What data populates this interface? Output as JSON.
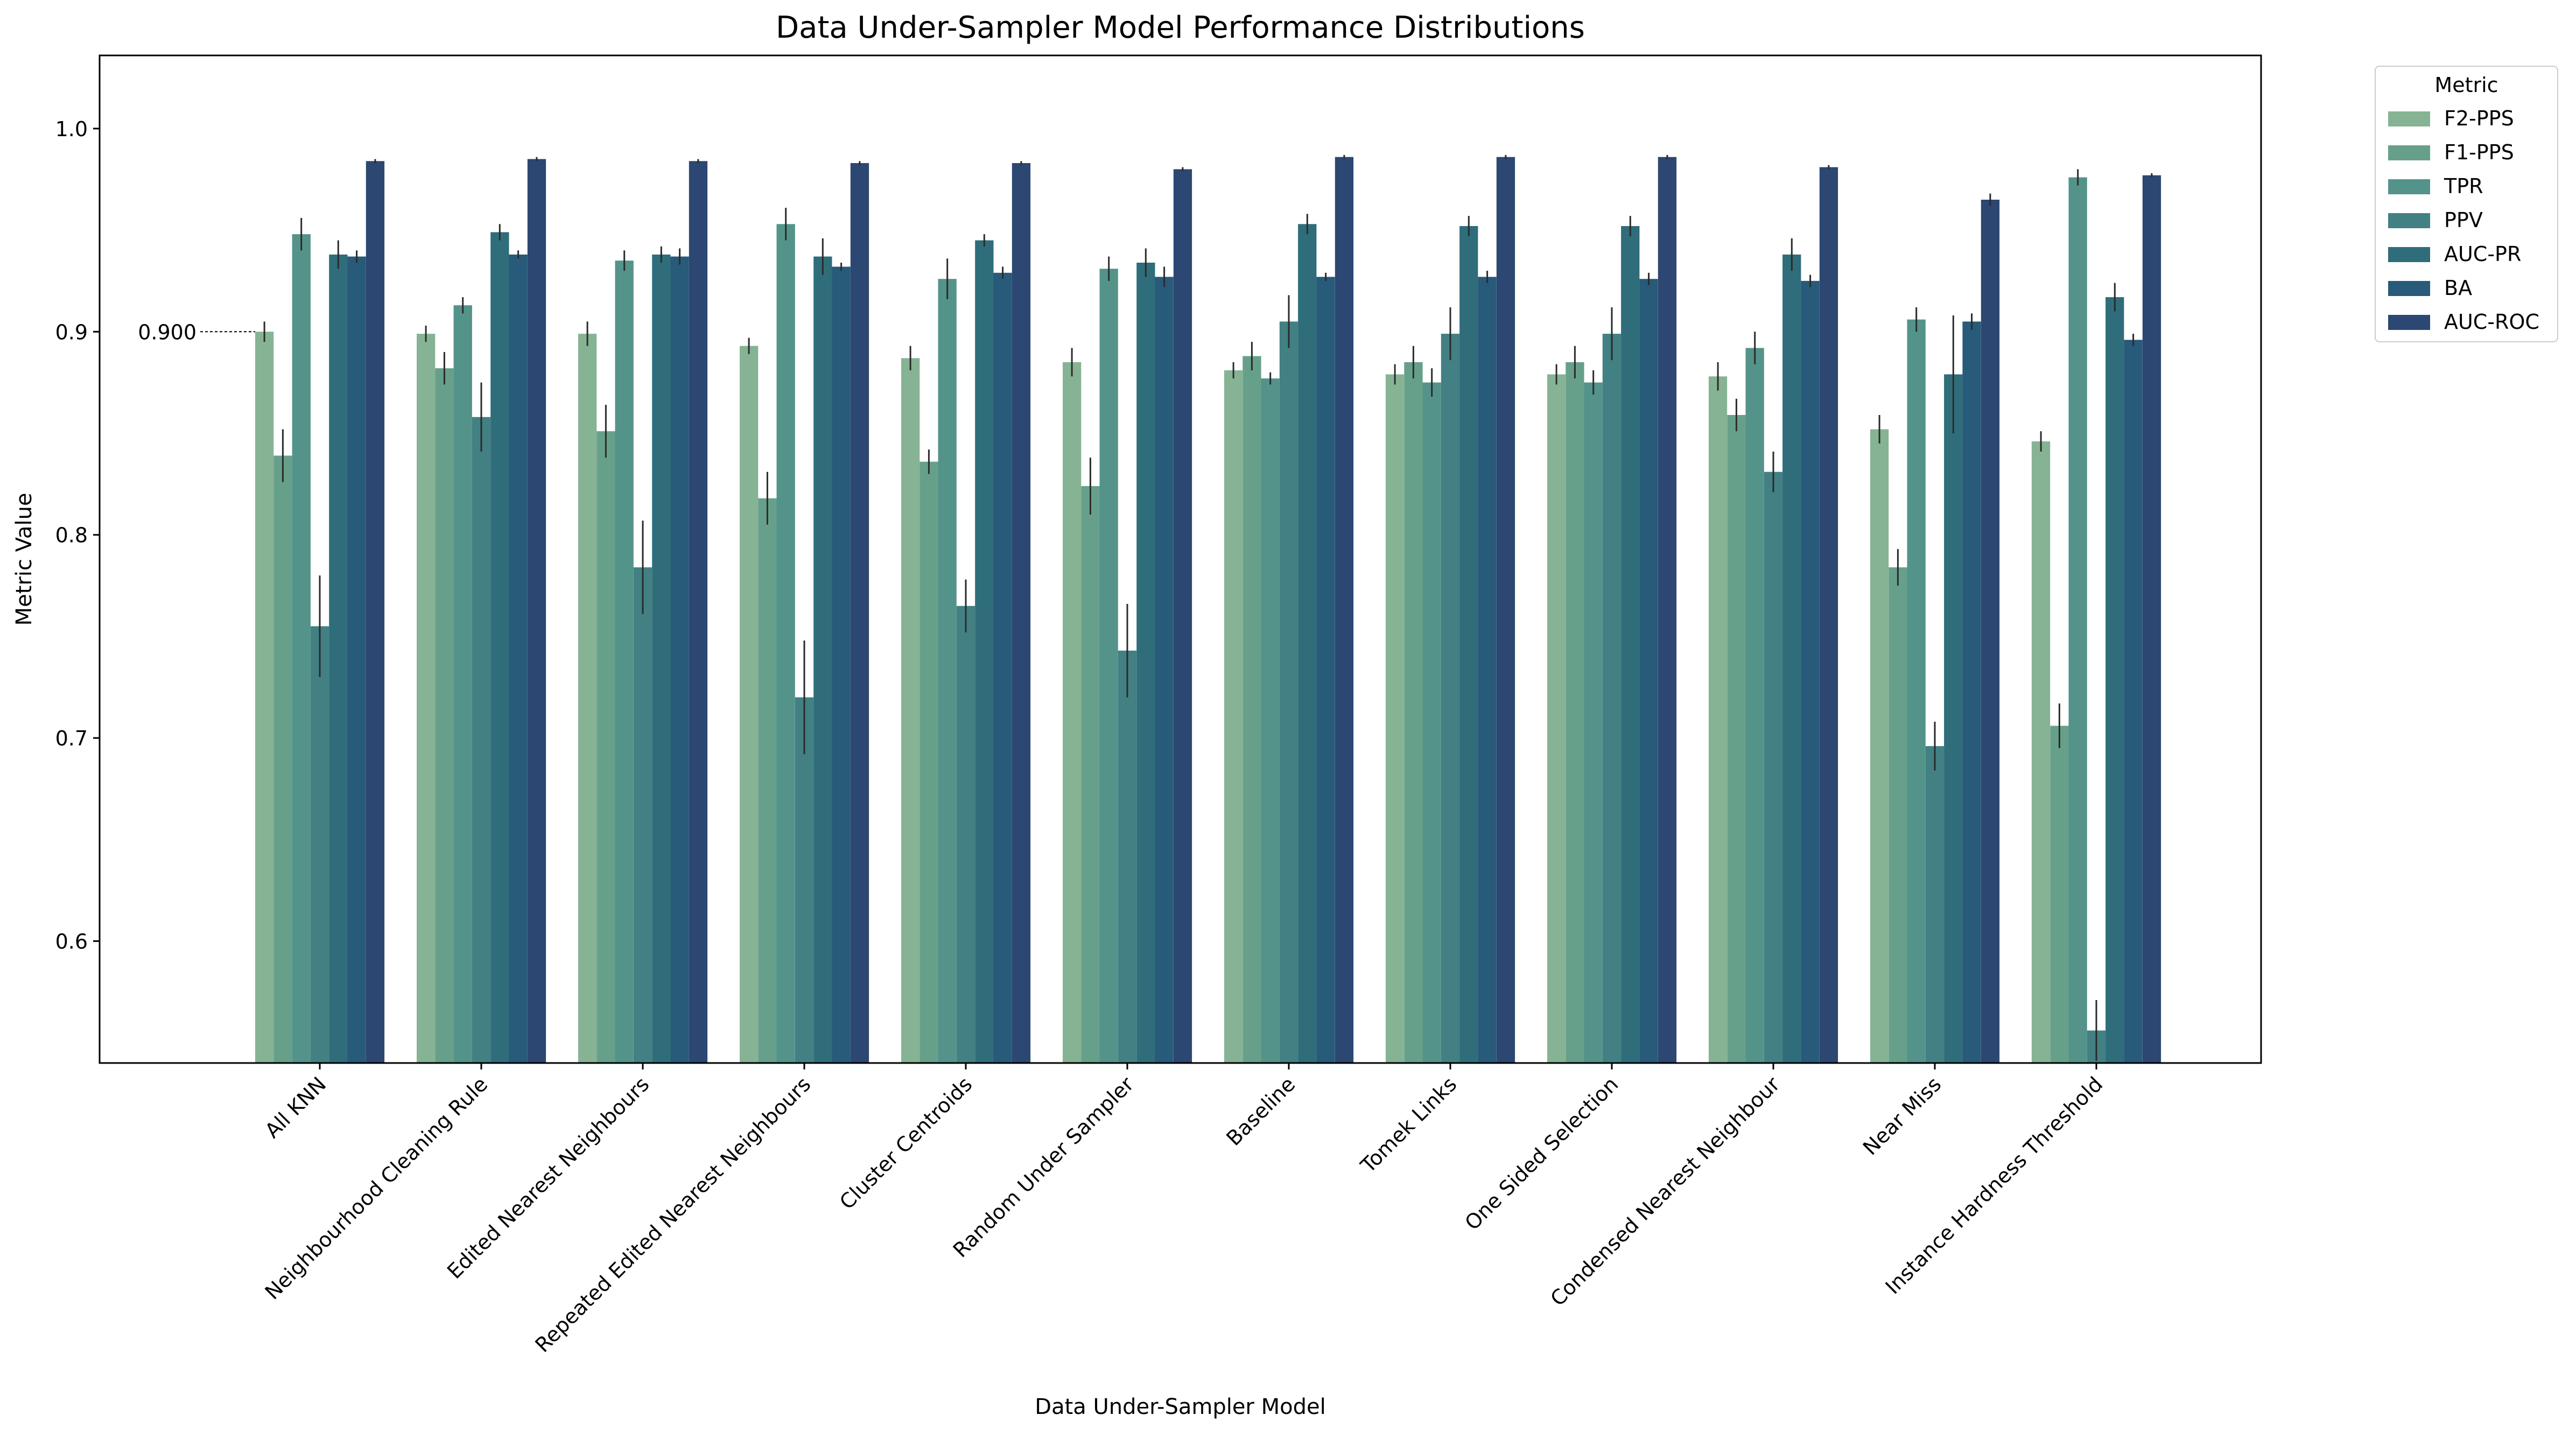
{
  "chart_data": {
    "type": "bar",
    "title": "Data Under-Sampler Model Performance Distributions",
    "xlabel": "Data Under-Sampler Model",
    "ylabel": "Metric Value",
    "ylim": [
      0.54,
      1.036
    ],
    "yticks": [
      0.6,
      0.7,
      0.8,
      0.9,
      1.0
    ],
    "ytick_labels": [
      "0.6",
      "0.7",
      "0.8",
      "0.9",
      "1.0"
    ],
    "grid": false,
    "legend": {
      "title": "Metric",
      "placement": "outside-top-right"
    },
    "reference_line": {
      "value": 0.9,
      "label": "0.900"
    },
    "categories": [
      "All KNN",
      "Neighbourhood Cleaning Rule",
      "Edited Nearest Neighbours",
      "Repeated Edited Nearest Neighbours",
      "Cluster Centroids",
      "Random Under Sampler",
      "Baseline",
      "Tomek Links",
      "One Sided Selection",
      "Condensed Nearest Neighbour",
      "Near Miss",
      "Instance Hardness Threshold"
    ],
    "series": [
      {
        "name": "F2-PPS",
        "color": "#86b394",
        "values": [
          0.9,
          0.899,
          0.899,
          0.893,
          0.887,
          0.885,
          0.881,
          0.879,
          0.879,
          0.878,
          0.852,
          0.846
        ],
        "errors": [
          0.005,
          0.004,
          0.006,
          0.004,
          0.006,
          0.007,
          0.004,
          0.005,
          0.005,
          0.007,
          0.007,
          0.005
        ]
      },
      {
        "name": "F1-PPS",
        "color": "#67a08a",
        "values": [
          0.839,
          0.882,
          0.851,
          0.818,
          0.836,
          0.824,
          0.888,
          0.885,
          0.885,
          0.859,
          0.784,
          0.706
        ],
        "errors": [
          0.013,
          0.008,
          0.013,
          0.013,
          0.006,
          0.014,
          0.007,
          0.008,
          0.008,
          0.008,
          0.009,
          0.011
        ]
      },
      {
        "name": "TPR",
        "color": "#54938a",
        "values": [
          0.948,
          0.913,
          0.935,
          0.953,
          0.926,
          0.931,
          0.877,
          0.875,
          0.875,
          0.892,
          0.906,
          0.976
        ],
        "errors": [
          0.008,
          0.004,
          0.005,
          0.008,
          0.01,
          0.006,
          0.003,
          0.007,
          0.006,
          0.008,
          0.006,
          0.004
        ]
      },
      {
        "name": "PPV",
        "color": "#428083",
        "values": [
          0.755,
          0.858,
          0.784,
          0.72,
          0.765,
          0.743,
          0.905,
          0.899,
          0.899,
          0.831,
          0.696,
          0.556
        ],
        "errors": [
          0.025,
          0.017,
          0.023,
          0.028,
          0.013,
          0.023,
          0.013,
          0.013,
          0.013,
          0.01,
          0.012,
          0.015
        ]
      },
      {
        "name": "AUC-PR",
        "color": "#2f6d7a",
        "values": [
          0.938,
          0.949,
          0.938,
          0.937,
          0.945,
          0.934,
          0.953,
          0.952,
          0.952,
          0.938,
          0.879,
          0.917
        ],
        "errors": [
          0.007,
          0.004,
          0.004,
          0.009,
          0.003,
          0.007,
          0.005,
          0.005,
          0.005,
          0.008,
          0.029,
          0.007
        ]
      },
      {
        "name": "BA",
        "color": "#285a7a",
        "values": [
          0.937,
          0.938,
          0.937,
          0.932,
          0.929,
          0.927,
          0.927,
          0.927,
          0.926,
          0.925,
          0.905,
          0.896
        ],
        "errors": [
          0.003,
          0.002,
          0.004,
          0.002,
          0.003,
          0.005,
          0.002,
          0.003,
          0.003,
          0.003,
          0.004,
          0.003
        ]
      },
      {
        "name": "AUC-ROC",
        "color": "#2c4771",
        "values": [
          0.984,
          0.985,
          0.984,
          0.983,
          0.983,
          0.98,
          0.986,
          0.986,
          0.986,
          0.981,
          0.965,
          0.977
        ],
        "errors": [
          0.001,
          0.001,
          0.001,
          0.001,
          0.001,
          0.001,
          0.001,
          0.001,
          0.001,
          0.001,
          0.003,
          0.001
        ]
      }
    ]
  }
}
